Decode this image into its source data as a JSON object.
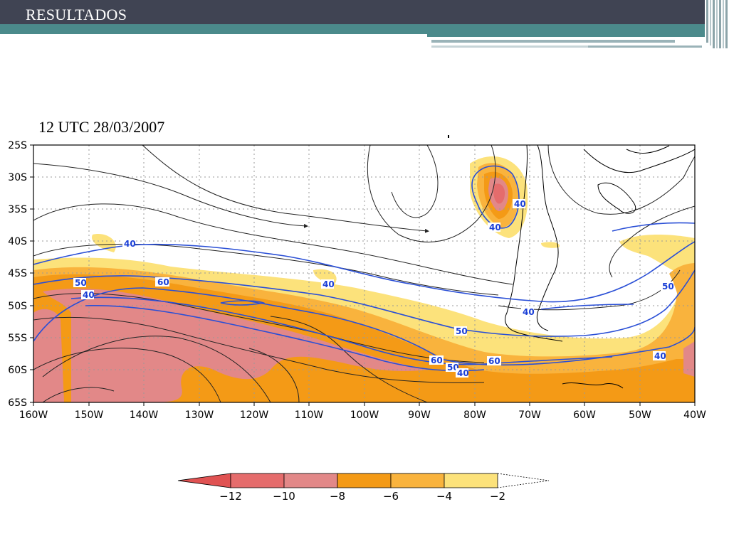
{
  "header": {
    "title": "RESULTADOS"
  },
  "colors": {
    "header_bg": "#404453",
    "header_accent": "#4b8a8b",
    "contour_line": "#2a4fd6",
    "streamline": "#222222"
  },
  "chart_data": {
    "type": "heatmap",
    "title": "12 UTC 28/03/2007",
    "x_axis": {
      "ticks": [
        "160W",
        "150W",
        "140W",
        "130W",
        "120W",
        "110W",
        "100W",
        "90W",
        "80W",
        "70W",
        "60W",
        "50W",
        "40W"
      ],
      "range": [
        -160,
        -40
      ]
    },
    "y_axis": {
      "ticks": [
        "25S",
        "30S",
        "35S",
        "40S",
        "45S",
        "50S",
        "55S",
        "60S",
        "65S"
      ],
      "range": [
        -25,
        -65
      ]
    },
    "grid": true,
    "shaded_field": {
      "levels": [
        -12,
        -10,
        -8,
        -6,
        -4,
        -2
      ],
      "level_labels": [
        "−12",
        "−10",
        "−8",
        "−6",
        "−4",
        "−2"
      ],
      "colors": [
        "#e05252",
        "#e56c6c",
        "#e28888",
        "#f49a16",
        "#f9b33d",
        "#fce27b"
      ]
    },
    "contour_labels": [
      "40",
      "40",
      "40",
      "40",
      "40",
      "40",
      "40",
      "40",
      "50",
      "50",
      "50",
      "50",
      "60",
      "60",
      "60"
    ],
    "overlays": [
      "streamlines",
      "contours",
      "coastlines"
    ]
  }
}
